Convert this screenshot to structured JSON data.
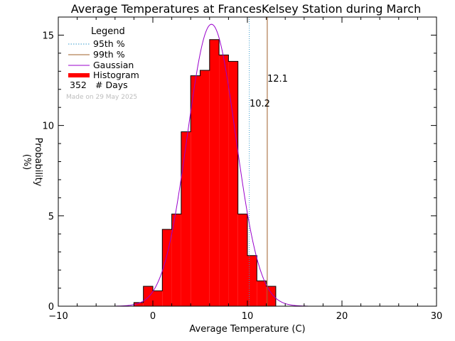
{
  "chart_data": {
    "type": "bar",
    "title": "Average Temperatures at FrancesKelsey Station during March",
    "xlabel": "Average Temperature (C)",
    "ylabel_line1": "Probability",
    "ylabel_line2": "(%)",
    "xlim": [
      -10,
      30
    ],
    "ylim": [
      0,
      16
    ],
    "xticks": [
      -10,
      0,
      10,
      20,
      30
    ],
    "yticks": [
      0,
      5,
      10,
      15
    ],
    "x_tick_labels": [
      "−10",
      "0",
      "10",
      "20",
      "30"
    ],
    "y_tick_labels": [
      "0",
      "5",
      "10",
      "15"
    ],
    "bin_width": 1,
    "bin_edges": [
      -2,
      -1,
      0,
      1,
      2,
      3,
      4,
      5,
      6,
      7,
      8,
      9,
      10,
      11,
      12,
      13
    ],
    "histogram_values": [
      0.2,
      1.1,
      0.85,
      4.25,
      5.1,
      9.65,
      12.75,
      13.05,
      14.75,
      13.9,
      13.55,
      5.1,
      2.8,
      1.4,
      1.1
    ],
    "histogram_color": "#ff0000",
    "gaussian": {
      "mean": 6.2,
      "sigma": 2.55,
      "peak": 15.6,
      "color": "#9900cc"
    },
    "p95": {
      "value": 10.2,
      "label": "10.2",
      "color": "#3399cc"
    },
    "p99": {
      "value": 12.1,
      "label": "12.1",
      "color": "#a0602a"
    },
    "legend": {
      "title": "Legend",
      "entries": [
        "95th %",
        "99th %",
        "Gaussian",
        "Histogram"
      ],
      "days_count": "352",
      "days_label": "# Days",
      "made_on": "Made on 29 May 2025"
    }
  }
}
